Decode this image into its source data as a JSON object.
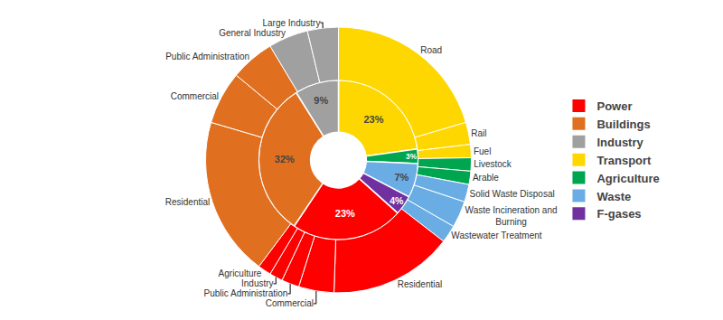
{
  "chart_data": {
    "type": "pie",
    "rings": [
      {
        "categories": [
          "Transport",
          "Agriculture",
          "Waste",
          "F-gases",
          "Power",
          "Buildings",
          "Industry"
        ],
        "values": [
          23,
          3,
          7,
          4,
          23,
          32,
          9
        ],
        "value_labels": [
          "23%",
          "3%",
          "7%",
          "4%",
          "23%",
          "32%",
          "9%"
        ],
        "colors": [
          "#ffd700",
          "#00a550",
          "#6aade4",
          "#7030a0",
          "#ff0000",
          "#e07020",
          "#a0a0a0"
        ],
        "data_labels": true
      },
      {
        "categories": [
          "Road",
          "Rail",
          "Fuel",
          "Livestock",
          "Arable",
          "Solid Waste Disposal",
          "Waste Incineration and\nBurning",
          "Wastewater Treatment",
          "Residential",
          "Commercial",
          "Public Administration",
          "Industry",
          "Agriculture",
          "Residential",
          "Commercial",
          "Public Administration",
          "General Industry",
          "Large Industry"
        ],
        "values": [
          19,
          2.5,
          1.5,
          1.5,
          1.5,
          2,
          3,
          2,
          14,
          4,
          2,
          1.5,
          1.5,
          18,
          6,
          5,
          4.5,
          3.5
        ],
        "colors": [
          "#ffd700",
          "#ffd700",
          "#ffd700",
          "#00a550",
          "#00a550",
          "#6aade4",
          "#6aade4",
          "#6aade4",
          "#ff0000",
          "#ff0000",
          "#ff0000",
          "#ff0000",
          "#ff0000",
          "#e07020",
          "#e07020",
          "#e07020",
          "#a0a0a0",
          "#a0a0a0"
        ]
      }
    ],
    "series": [
      {
        "name": "Power",
        "color": "#ff0000"
      },
      {
        "name": "Buildings",
        "color": "#e07020"
      },
      {
        "name": "Industry",
        "color": "#a0a0a0"
      },
      {
        "name": "Transport",
        "color": "#ffd700"
      },
      {
        "name": "Agriculture",
        "color": "#00a550"
      },
      {
        "name": "Waste",
        "color": "#6aade4"
      },
      {
        "name": "F-gases",
        "color": "#7030a0"
      }
    ],
    "legend": "right"
  }
}
